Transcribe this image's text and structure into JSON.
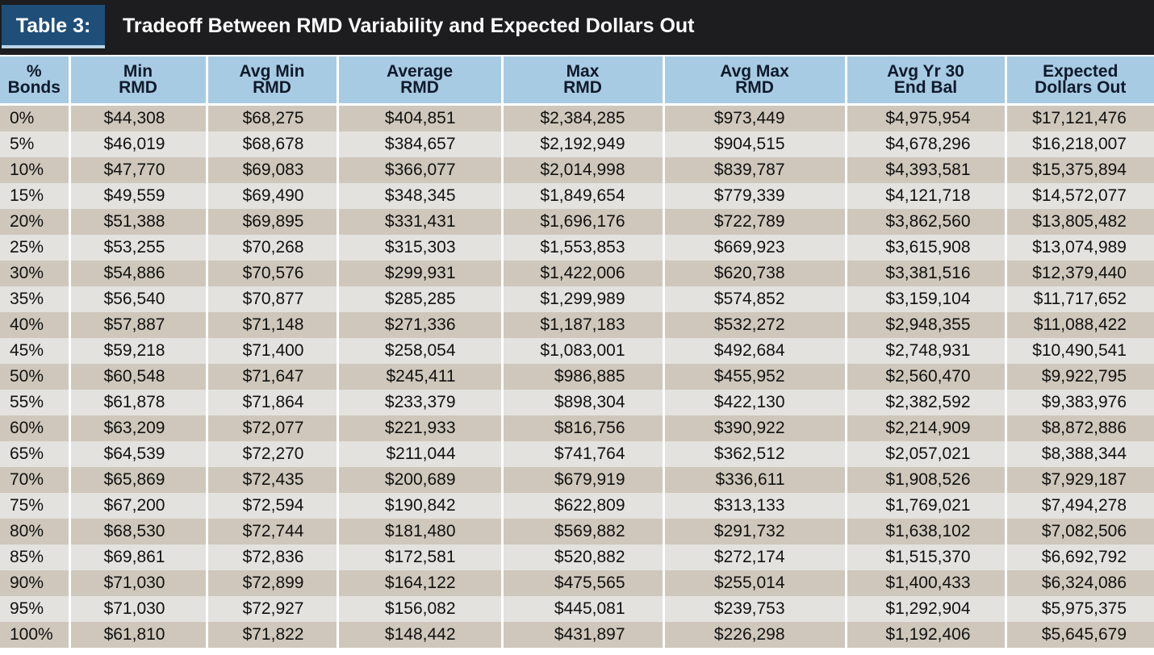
{
  "title": {
    "tag": "Table 3:",
    "text": "Tradeoff Between RMD Variability and Expected Dollars Out"
  },
  "colors": {
    "title_bg": "#1d1d1f",
    "tag_bg": "#1f4e79",
    "header_bg": "#a8cbe4",
    "row_odd": "#cfc7bb",
    "row_even": "#e3e2de"
  },
  "columns": [
    [
      "%",
      "Bonds"
    ],
    [
      "Min",
      "RMD"
    ],
    [
      "Avg Min",
      "RMD"
    ],
    [
      "Average",
      "RMD"
    ],
    [
      "Max",
      "RMD"
    ],
    [
      "Avg Max",
      "RMD"
    ],
    [
      "Avg Yr 30",
      "End Bal"
    ],
    [
      "Expected",
      "Dollars Out"
    ]
  ],
  "rows": [
    [
      "0%",
      "$44,308",
      "$68,275",
      "$404,851",
      "$2,384,285",
      "$973,449",
      "$4,975,954",
      "$17,121,476"
    ],
    [
      "5%",
      "$46,019",
      "$68,678",
      "$384,657",
      "$2,192,949",
      "$904,515",
      "$4,678,296",
      "$16,218,007"
    ],
    [
      "10%",
      "$47,770",
      "$69,083",
      "$366,077",
      "$2,014,998",
      "$839,787",
      "$4,393,581",
      "$15,375,894"
    ],
    [
      "15%",
      "$49,559",
      "$69,490",
      "$348,345",
      "$1,849,654",
      "$779,339",
      "$4,121,718",
      "$14,572,077"
    ],
    [
      "20%",
      "$51,388",
      "$69,895",
      "$331,431",
      "$1,696,176",
      "$722,789",
      "$3,862,560",
      "$13,805,482"
    ],
    [
      "25%",
      "$53,255",
      "$70,268",
      "$315,303",
      "$1,553,853",
      "$669,923",
      "$3,615,908",
      "$13,074,989"
    ],
    [
      "30%",
      "$54,886",
      "$70,576",
      "$299,931",
      "$1,422,006",
      "$620,738",
      "$3,381,516",
      "$12,379,440"
    ],
    [
      "35%",
      "$56,540",
      "$70,877",
      "$285,285",
      "$1,299,989",
      "$574,852",
      "$3,159,104",
      "$11,717,652"
    ],
    [
      "40%",
      "$57,887",
      "$71,148",
      "$271,336",
      "$1,187,183",
      "$532,272",
      "$2,948,355",
      "$11,088,422"
    ],
    [
      "45%",
      "$59,218",
      "$71,400",
      "$258,054",
      "$1,083,001",
      "$492,684",
      "$2,748,931",
      "$10,490,541"
    ],
    [
      "50%",
      "$60,548",
      "$71,647",
      "$245,411",
      "$986,885",
      "$455,952",
      "$2,560,470",
      "$9,922,795"
    ],
    [
      "55%",
      "$61,878",
      "$71,864",
      "$233,379",
      "$898,304",
      "$422,130",
      "$2,382,592",
      "$9,383,976"
    ],
    [
      "60%",
      "$63,209",
      "$72,077",
      "$221,933",
      "$816,756",
      "$390,922",
      "$2,214,909",
      "$8,872,886"
    ],
    [
      "65%",
      "$64,539",
      "$72,270",
      "$211,044",
      "$741,764",
      "$362,512",
      "$2,057,021",
      "$8,388,344"
    ],
    [
      "70%",
      "$65,869",
      "$72,435",
      "$200,689",
      "$679,919",
      "$336,611",
      "$1,908,526",
      "$7,929,187"
    ],
    [
      "75%",
      "$67,200",
      "$72,594",
      "$190,842",
      "$622,809",
      "$313,133",
      "$1,769,021",
      "$7,494,278"
    ],
    [
      "80%",
      "$68,530",
      "$72,744",
      "$181,480",
      "$569,882",
      "$291,732",
      "$1,638,102",
      "$7,082,506"
    ],
    [
      "85%",
      "$69,861",
      "$72,836",
      "$172,581",
      "$520,882",
      "$272,174",
      "$1,515,370",
      "$6,692,792"
    ],
    [
      "90%",
      "$71,030",
      "$72,899",
      "$164,122",
      "$475,565",
      "$255,014",
      "$1,400,433",
      "$6,324,086"
    ],
    [
      "95%",
      "$71,030",
      "$72,927",
      "$156,082",
      "$445,081",
      "$239,753",
      "$1,292,904",
      "$5,975,375"
    ],
    [
      "100%",
      "$61,810",
      "$71,822",
      "$148,442",
      "$431,897",
      "$226,298",
      "$1,192,406",
      "$5,645,679"
    ]
  ]
}
